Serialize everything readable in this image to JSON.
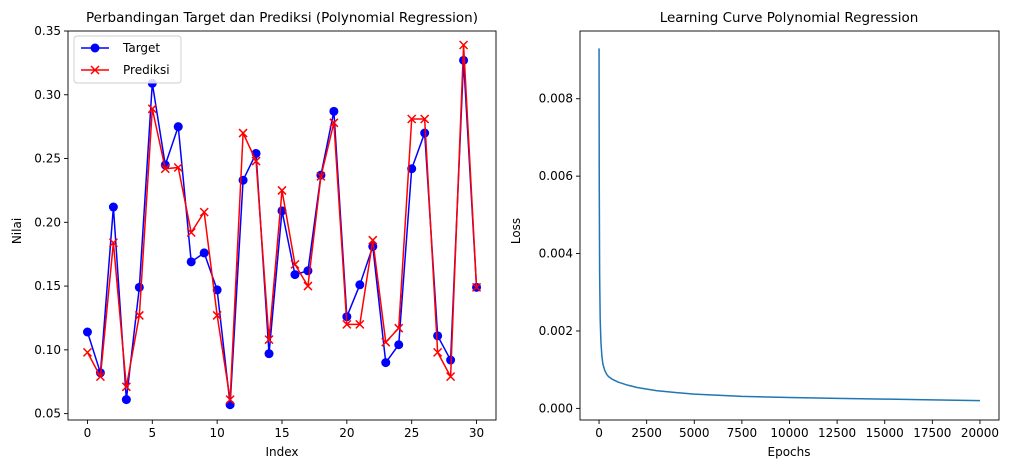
{
  "chart_data": [
    {
      "type": "line",
      "title": "Perbandingan Target dan Prediksi (Polynomial Regression)",
      "xlabel": "Index",
      "ylabel": "Nilai",
      "xlim": [
        -1.5,
        31.5
      ],
      "ylim": [
        0.045,
        0.35
      ],
      "xticks": [
        0,
        5,
        10,
        15,
        20,
        25,
        30
      ],
      "xtick_labels": [
        "0",
        "5",
        "10",
        "15",
        "20",
        "25",
        "30"
      ],
      "yticks": [
        0.05,
        0.1,
        0.15,
        0.2,
        0.25,
        0.3,
        0.35
      ],
      "ytick_labels": [
        "0.05",
        "0.10",
        "0.15",
        "0.20",
        "0.25",
        "0.30",
        "0.35"
      ],
      "grid": false,
      "legend": "top-left",
      "x": [
        0,
        1,
        2,
        3,
        4,
        5,
        6,
        7,
        8,
        9,
        10,
        11,
        12,
        13,
        14,
        15,
        16,
        17,
        18,
        19,
        20,
        21,
        22,
        23,
        24,
        25,
        26,
        27,
        28,
        29,
        30
      ],
      "series": [
        {
          "name": "Target",
          "color": "#0000ff",
          "marker": "circle",
          "values": [
            0.114,
            0.082,
            0.212,
            0.061,
            0.149,
            0.309,
            0.245,
            0.275,
            0.169,
            0.176,
            0.147,
            0.057,
            0.233,
            0.254,
            0.097,
            0.209,
            0.159,
            0.162,
            0.237,
            0.287,
            0.126,
            0.151,
            0.181,
            0.09,
            0.104,
            0.242,
            0.27,
            0.111,
            0.092,
            0.327,
            0.149
          ]
        },
        {
          "name": "Prediksi",
          "color": "#ff0000",
          "marker": "x",
          "values": [
            0.098,
            0.079,
            0.184,
            0.071,
            0.127,
            0.289,
            0.242,
            0.243,
            0.192,
            0.208,
            0.127,
            0.061,
            0.27,
            0.248,
            0.108,
            0.225,
            0.167,
            0.15,
            0.236,
            0.278,
            0.12,
            0.12,
            0.186,
            0.106,
            0.117,
            0.281,
            0.281,
            0.098,
            0.079,
            0.339,
            0.149
          ]
        }
      ]
    },
    {
      "type": "line",
      "title": "Learning Curve Polynomial Regression",
      "xlabel": "Epochs",
      "ylabel": "Loss",
      "xlim": [
        -1000,
        21000
      ],
      "ylim": [
        -0.0003,
        0.00975
      ],
      "xticks": [
        0,
        2500,
        5000,
        7500,
        10000,
        12500,
        15000,
        17500,
        20000
      ],
      "xtick_labels": [
        "0",
        "2500",
        "5000",
        "7500",
        "10000",
        "12500",
        "15000",
        "17500",
        "20000"
      ],
      "yticks": [
        0,
        0.002,
        0.004,
        0.006,
        0.008
      ],
      "ytick_labels": [
        "0.000",
        "0.002",
        "0.004",
        "0.006",
        "0.008"
      ],
      "grid": false,
      "series": [
        {
          "color": "#1f77b4",
          "x": [
            0,
            10,
            30,
            60,
            100,
            150,
            200,
            300,
            400,
            500,
            700,
            1000,
            1500,
            2000,
            3000,
            4000,
            5000,
            7500,
            10000,
            12500,
            15000,
            17500,
            20000
          ],
          "values": [
            0.0093,
            0.006,
            0.0035,
            0.0023,
            0.0017,
            0.00135,
            0.00115,
            0.00098,
            0.00088,
            0.00082,
            0.00075,
            0.00068,
            0.0006,
            0.00054,
            0.00046,
            0.00041,
            0.00037,
            0.00031,
            0.00028,
            0.00026,
            0.00024,
            0.00022,
            0.0002
          ]
        }
      ]
    }
  ]
}
